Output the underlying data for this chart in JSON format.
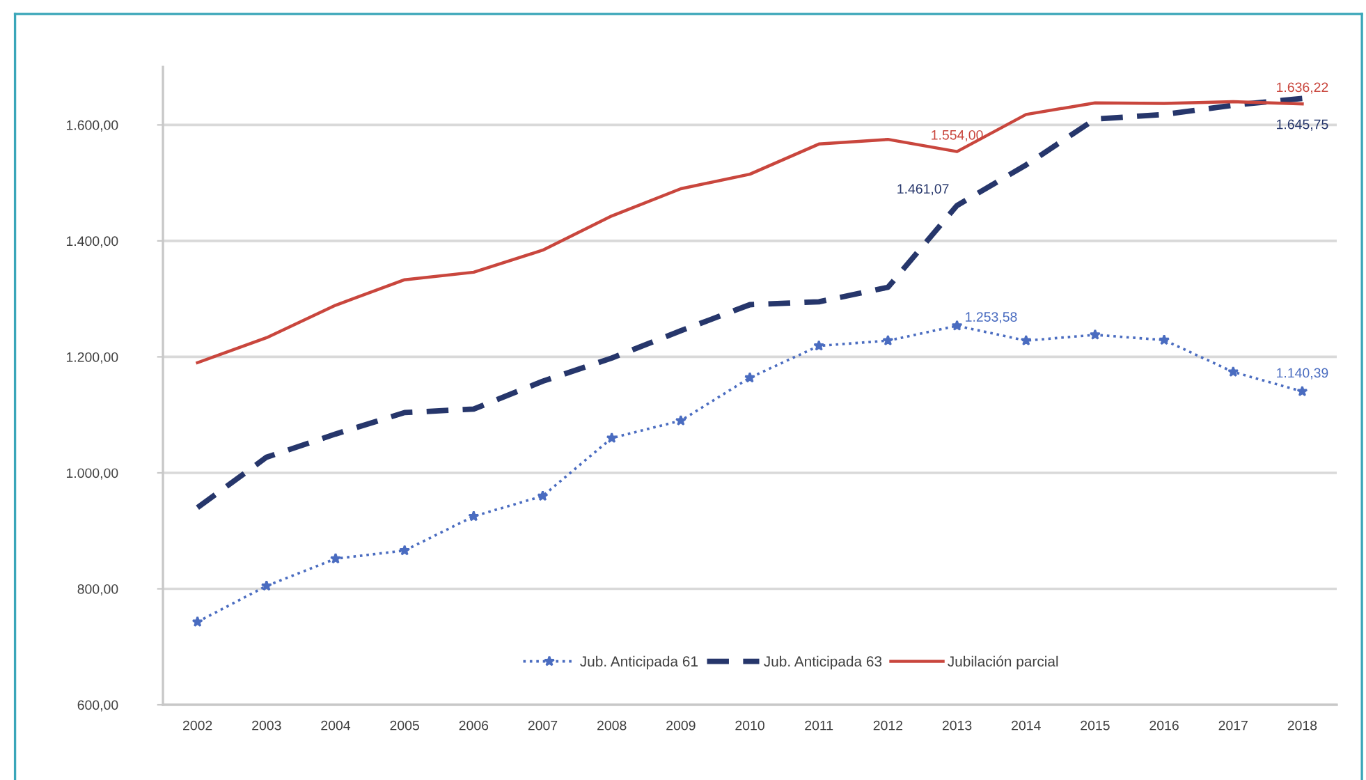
{
  "chart_data": {
    "type": "line",
    "categories": [
      "2002",
      "2003",
      "2004",
      "2005",
      "2006",
      "2007",
      "2008",
      "2009",
      "2010",
      "2011",
      "2012",
      "2013",
      "2014",
      "2015",
      "2016",
      "2017",
      "2018"
    ],
    "ylim": [
      600,
      1700
    ],
    "yticks": [
      {
        "value": 600,
        "label": "600,00"
      },
      {
        "value": 800,
        "label": "800,00"
      },
      {
        "value": 1000,
        "label": "1.000,00"
      },
      {
        "value": 1200,
        "label": "1.200,00"
      },
      {
        "value": 1400,
        "label": "1.400,00"
      },
      {
        "value": 1600,
        "label": "1.600,00"
      }
    ],
    "grid": "y",
    "legend": "bottom",
    "series": [
      {
        "name": "Jub. Anticipada 61",
        "color": "#4a6cc0",
        "line_style": "dotted",
        "marker": "star",
        "values": [
          743,
          805,
          852,
          866,
          925,
          960,
          1060,
          1090,
          1164,
          1219,
          1228,
          1253.58,
          1228,
          1238,
          1229,
          1174,
          1140.39
        ],
        "value_labels": [
          null,
          null,
          null,
          null,
          null,
          null,
          null,
          null,
          null,
          null,
          null,
          "1.253,58",
          null,
          null,
          null,
          null,
          "1.140,39"
        ]
      },
      {
        "name": "Jub. Anticipada 63",
        "color": "#26366b",
        "line_style": "dashed",
        "marker": "none",
        "values": [
          940,
          1027,
          1067,
          1104,
          1110,
          1158,
          1198,
          1245,
          1290,
          1295,
          1320,
          1461.07,
          1531,
          1610,
          1618,
          1634,
          1645.75
        ],
        "value_labels": [
          null,
          null,
          null,
          null,
          null,
          null,
          null,
          null,
          null,
          null,
          null,
          "1.461,07",
          null,
          null,
          null,
          null,
          "1.645,75"
        ]
      },
      {
        "name": "Jubilación parcial",
        "color": "#c9463d",
        "line_style": "solid",
        "marker": "none",
        "values": [
          1190,
          1233,
          1289,
          1333,
          1346,
          1384,
          1443,
          1490,
          1515,
          1567,
          1575,
          1554,
          1618,
          1638,
          1637,
          1640,
          1636.22
        ],
        "value_labels": [
          null,
          null,
          null,
          null,
          null,
          null,
          null,
          null,
          null,
          null,
          null,
          "1.554,00",
          null,
          null,
          null,
          null,
          "1.636,22"
        ]
      }
    ]
  }
}
